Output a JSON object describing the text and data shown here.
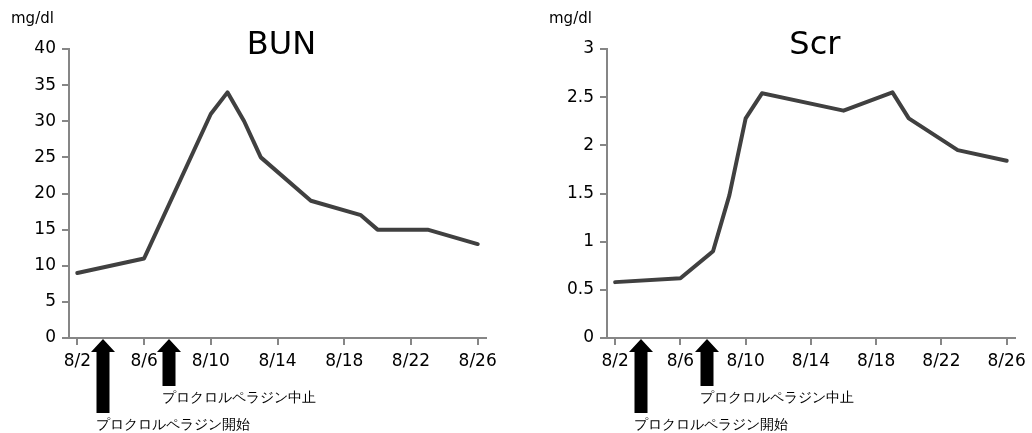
{
  "chart_data": [
    {
      "type": "line",
      "title": "BUN",
      "ylabel": "mg/dl",
      "color": "#404040",
      "marker": "none",
      "x": [
        "--08-02",
        "--08-06",
        "--08-10",
        "--08-11",
        "--08-12",
        "--08-13",
        "--08-16",
        "--08-19",
        "--08-20",
        "--08-23",
        "--08-26"
      ],
      "values": [
        9,
        11,
        31,
        34,
        30,
        25,
        19,
        17,
        15,
        15,
        13
      ],
      "xlim": [
        "--08-01T12:00",
        "--08-26T12:00"
      ],
      "xticks": [
        {
          "value": "--08-02",
          "label": "8/2"
        },
        {
          "value": "--08-06",
          "label": "8/6"
        },
        {
          "value": "--08-10",
          "label": "8/10"
        },
        {
          "value": "--08-14",
          "label": "8/14"
        },
        {
          "value": "--08-18",
          "label": "8/18"
        },
        {
          "value": "--08-22",
          "label": "8/22"
        },
        {
          "value": "--08-26",
          "label": "8/26"
        }
      ],
      "ylim": [
        0,
        40
      ],
      "yticks": [
        0,
        5,
        10,
        15,
        20,
        25,
        30,
        35,
        40
      ],
      "annotations": [
        "プロクロルペラジン開始",
        "プロクロルペラジン中止"
      ]
    },
    {
      "type": "line",
      "title": "Scr",
      "ylabel": "mg/dl",
      "color": "#404040",
      "marker": "none",
      "x": [
        "--08-02",
        "--08-06",
        "--08-08",
        "--08-09",
        "--08-10",
        "--08-11",
        "--08-16",
        "--08-19",
        "--08-20",
        "--08-23",
        "--08-26"
      ],
      "values": [
        0.58,
        0.62,
        0.9,
        1.48,
        2.28,
        2.54,
        2.36,
        2.55,
        2.28,
        1.95,
        1.84
      ],
      "xlim": [
        "--08-01T12:00",
        "--08-26T12:00"
      ],
      "xticks": [
        {
          "value": "--08-02",
          "label": "8/2"
        },
        {
          "value": "--08-06",
          "label": "8/6"
        },
        {
          "value": "--08-10",
          "label": "8/10"
        },
        {
          "value": "--08-14",
          "label": "8/14"
        },
        {
          "value": "--08-18",
          "label": "8/18"
        },
        {
          "value": "--08-22",
          "label": "8/22"
        },
        {
          "value": "--08-26",
          "label": "8/26"
        }
      ],
      "ylim": [
        0,
        3
      ],
      "yticks": [
        0,
        0.5,
        1,
        1.5,
        2,
        2.5,
        3
      ],
      "annotations": [
        "プロクロルペラジン開始",
        "プロクロルペラジン中止"
      ]
    }
  ]
}
